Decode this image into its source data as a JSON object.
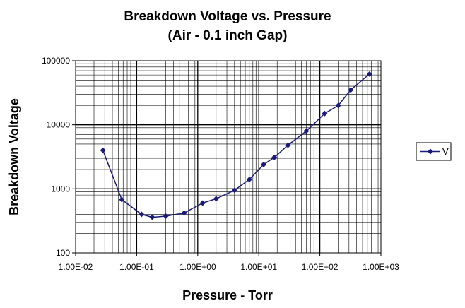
{
  "chart_data": {
    "type": "line",
    "title": "Breakdown Voltage vs. Pressure",
    "subtitle": "(Air - 0.1 inch Gap)",
    "xlabel": "Pressure - Torr",
    "ylabel": "Breakdown Voltage",
    "xscale": "log",
    "yscale": "log",
    "xlim": [
      0.01,
      1000
    ],
    "ylim": [
      100,
      100000
    ],
    "xticks": [
      "1.00E-02",
      "1.00E-01",
      "1.00E+00",
      "1.00E+01",
      "1.00E+02",
      "1.00E+03"
    ],
    "yticks": [
      "100",
      "1000",
      "10000",
      "100000"
    ],
    "grid": true,
    "legend": "right",
    "series": [
      {
        "name": "V",
        "color": "#1a1a7a",
        "marker": "diamond",
        "points": [
          {
            "x": 0.028,
            "y": 4000
          },
          {
            "x": 0.057,
            "y": 680
          },
          {
            "x": 0.12,
            "y": 400
          },
          {
            "x": 0.18,
            "y": 360
          },
          {
            "x": 0.3,
            "y": 375
          },
          {
            "x": 0.6,
            "y": 420
          },
          {
            "x": 1.2,
            "y": 600
          },
          {
            "x": 2.0,
            "y": 700
          },
          {
            "x": 4.0,
            "y": 950
          },
          {
            "x": 7.0,
            "y": 1400
          },
          {
            "x": 12.0,
            "y": 2400
          },
          {
            "x": 18.0,
            "y": 3100
          },
          {
            "x": 30.0,
            "y": 4800
          },
          {
            "x": 60.0,
            "y": 8000
          },
          {
            "x": 120.0,
            "y": 15000
          },
          {
            "x": 200.0,
            "y": 20000
          },
          {
            "x": 320.0,
            "y": 35000
          },
          {
            "x": 650.0,
            "y": 62000
          }
        ]
      }
    ]
  }
}
